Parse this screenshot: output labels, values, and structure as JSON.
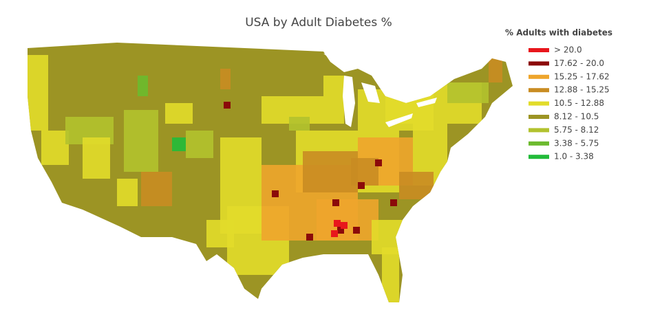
{
  "title": "USA by Adult Diabetes %",
  "legend": {
    "title": "% Adults with diabetes",
    "items": [
      {
        "label": "> 20.0",
        "color": "#e8161c"
      },
      {
        "label": "17.62 - 20.0",
        "color": "#8b0a0a"
      },
      {
        "label": "15.25 - 17.62",
        "color": "#eea52c"
      },
      {
        "label": "12.88 - 15.25",
        "color": "#c98c22"
      },
      {
        "label": "10.5 - 12.88",
        "color": "#e2dc2a"
      },
      {
        "label": "8.12 - 10.5",
        "color": "#9c9424"
      },
      {
        "label": "5.75 - 8.12",
        "color": "#b2c22e"
      },
      {
        "label": "3.38 - 5.75",
        "color": "#6cba2e"
      },
      {
        "label": "1.0 - 3.38",
        "color": "#22bb3a"
      }
    ]
  }
}
